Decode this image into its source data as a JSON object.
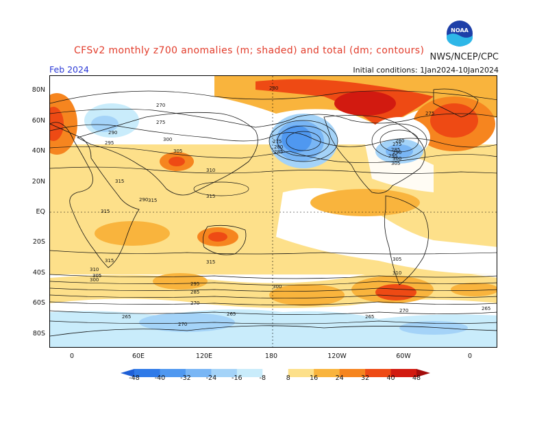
{
  "header": {
    "title": "CFSv2 monthly z700 anomalies (m; shaded) and total (dm; contours)",
    "agency": "NWS/NCEP/CPC",
    "month": "Feb 2024",
    "initial_conditions": "Initial conditions: 1Jan2024-10Jan2024"
  },
  "axes": {
    "lat_labels": [
      "80N",
      "60N",
      "40N",
      "20N",
      "EQ",
      "20S",
      "40S",
      "60S",
      "80S"
    ],
    "lon_labels": [
      "0",
      "60E",
      "120E",
      "180",
      "120W",
      "60W",
      "0"
    ]
  },
  "colorbar": {
    "labels": [
      "-48",
      "-40",
      "-32",
      "-24",
      "-16",
      "-8",
      "8",
      "16",
      "24",
      "32",
      "40",
      "48"
    ],
    "colors": [
      "#1e5fd6",
      "#2f7ae8",
      "#4f98f0",
      "#79b6f5",
      "#a4d3f8",
      "#c9ecfb",
      "#ffffff",
      "#fde08a",
      "#f9b43d",
      "#f6851f",
      "#ee4a14",
      "#d21a10",
      "#a30c0b"
    ]
  },
  "contour_labels": [
    "280",
    "270",
    "275",
    "290",
    "295",
    "300",
    "305",
    "310",
    "315",
    "315",
    "315",
    "315",
    "315",
    "315",
    "310",
    "305",
    "300",
    "295",
    "285",
    "270",
    "265",
    "265",
    "265",
    "265",
    "270",
    "270",
    "275",
    "290",
    "305",
    "280",
    "285",
    "275",
    "300",
    "275",
    "280",
    "285",
    "290",
    "295",
    "300",
    "305",
    "310"
  ],
  "logo": {
    "text": "NOAA",
    "icon": "noaa-logo-icon"
  }
}
